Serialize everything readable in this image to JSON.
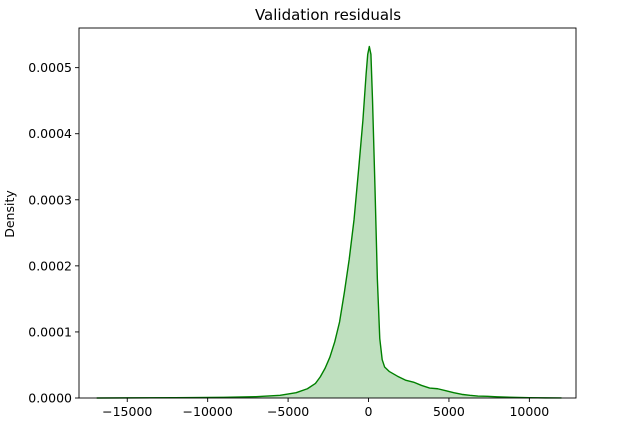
{
  "chart_data": {
    "type": "area",
    "title": "Validation residuals",
    "xlabel": "",
    "ylabel": "Density",
    "xlim": [
      -18000,
      12900
    ],
    "ylim": [
      0,
      0.00056
    ],
    "grid": false,
    "legend": "none",
    "x_ticks": [
      -15000,
      -10000,
      -5000,
      0,
      5000,
      10000
    ],
    "x_tick_labels": [
      "−15000",
      "−10000",
      "−5000",
      "0",
      "5000",
      "10000"
    ],
    "y_ticks": [
      0,
      0.0001,
      0.0002,
      0.0003,
      0.0004,
      0.0005
    ],
    "y_tick_labels": [
      "0.0000",
      "0.0001",
      "0.0002",
      "0.0003",
      "0.0004",
      "0.0005"
    ],
    "series": [
      {
        "line_color": "#008000",
        "fill_color": "#bfe0bf",
        "x": [
          -16900,
          -12000,
          -9000,
          -7000,
          -5500,
          -4500,
          -3800,
          -3300,
          -3000,
          -2700,
          -2400,
          -2100,
          -1800,
          -1500,
          -1200,
          -900,
          -600,
          -350,
          -150,
          -50,
          50,
          150,
          250,
          400,
          550,
          700,
          850,
          1000,
          1300,
          1800,
          2300,
          2800,
          3300,
          3800,
          4300,
          4800,
          5300,
          5800,
          6300,
          6800,
          7400,
          8000,
          9000,
          10000,
          11000,
          12000
        ],
        "y": [
          0,
          5e-07,
          1e-06,
          2e-06,
          4e-06,
          8e-06,
          1.4e-05,
          2.2e-05,
          3.2e-05,
          4.5e-05,
          6.2e-05,
          8.5e-05,
          0.000115,
          0.00016,
          0.00021,
          0.00027,
          0.00035,
          0.00042,
          0.00049,
          0.00052,
          0.000532,
          0.00052,
          0.00045,
          0.00032,
          0.00018,
          9e-05,
          5.8e-05,
          4.7e-05,
          4e-05,
          3.3e-05,
          2.7e-05,
          2.4e-05,
          1.9e-05,
          1.5e-05,
          1.4e-05,
          1.1e-05,
          8e-06,
          5.5e-06,
          4e-06,
          3e-06,
          2.5e-06,
          1.8e-06,
          1e-06,
          5e-07,
          2e-07,
          1e-07
        ]
      }
    ]
  }
}
